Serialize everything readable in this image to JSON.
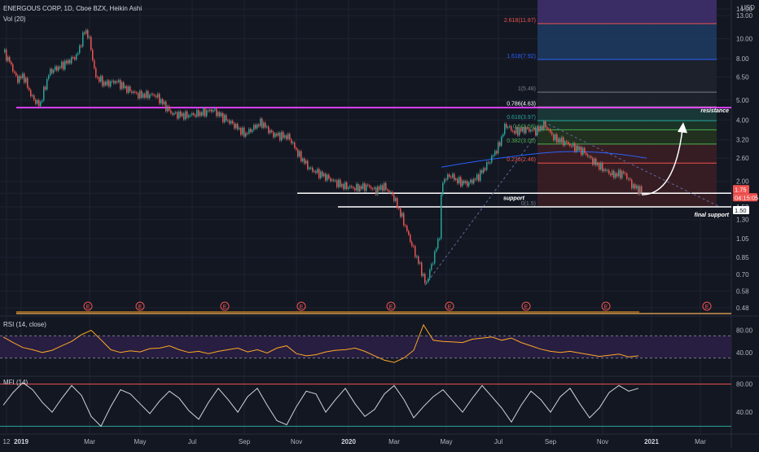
{
  "header": {
    "symbol_line": "ENERGOUS CORP, 1D, Cboe BZX, Heikin Ashi",
    "volume_label": "Vol (20)",
    "rsi_label": "RSI (14, close)",
    "mfi_label": "MFI (14)"
  },
  "chart_data": [
    {
      "type": "candlestick",
      "title": "ENERGOUS CORP, 1D, Cboe BZX, Heikin Ashi",
      "scale": "log",
      "currency": "USD",
      "ylim": [
        0.45,
        15.5
      ],
      "y_ticks": [
        {
          "value": 14.0,
          "label": "14.00"
        },
        {
          "value": 13.0,
          "label": "13.00"
        },
        {
          "value": 10.0,
          "label": "10.00"
        },
        {
          "value": 8.0,
          "label": "8.00"
        },
        {
          "value": 6.5,
          "label": "6.50"
        },
        {
          "value": 5.0,
          "label": "5.00"
        },
        {
          "value": 4.0,
          "label": "4.00"
        },
        {
          "value": 3.2,
          "label": "3.20"
        },
        {
          "value": 2.6,
          "label": "2.60"
        },
        {
          "value": 2.0,
          "label": "2.00"
        },
        {
          "value": 1.75,
          "label": "1.75"
        },
        {
          "value": 1.5,
          "label": "1.50"
        },
        {
          "value": 1.3,
          "label": "1.30"
        },
        {
          "value": 1.05,
          "label": "1.05"
        },
        {
          "value": 0.85,
          "label": "0.85"
        },
        {
          "value": 0.7,
          "label": "0.70"
        },
        {
          "value": 0.58,
          "label": "0.58"
        },
        {
          "value": 0.48,
          "label": "0.48"
        }
      ],
      "x_ticks": [
        "12",
        "2019",
        "Mar",
        "May",
        "Jul",
        "Sep",
        "Nov",
        "2020",
        "Mar",
        "May",
        "Jul",
        "Sep",
        "Nov",
        "2021",
        "Mar"
      ],
      "x_tick_bold": [
        "2019",
        "2020",
        "2021"
      ],
      "price_path": [
        {
          "t": 0,
          "v": 8.6
        },
        {
          "t": 8,
          "v": 7.6
        },
        {
          "t": 16,
          "v": 6.3
        },
        {
          "t": 24,
          "v": 6.6
        },
        {
          "t": 34,
          "v": 5.2
        },
        {
          "t": 44,
          "v": 4.7
        },
        {
          "t": 56,
          "v": 6.9
        },
        {
          "t": 66,
          "v": 7.2
        },
        {
          "t": 76,
          "v": 7.6
        },
        {
          "t": 90,
          "v": 8.3
        },
        {
          "t": 100,
          "v": 11.2
        },
        {
          "t": 106,
          "v": 9.6
        },
        {
          "t": 112,
          "v": 6.6
        },
        {
          "t": 124,
          "v": 6.0
        },
        {
          "t": 138,
          "v": 6.2
        },
        {
          "t": 150,
          "v": 5.7
        },
        {
          "t": 166,
          "v": 5.3
        },
        {
          "t": 186,
          "v": 5.3
        },
        {
          "t": 196,
          "v": 4.8
        },
        {
          "t": 206,
          "v": 4.3
        },
        {
          "t": 224,
          "v": 4.2
        },
        {
          "t": 246,
          "v": 4.35
        },
        {
          "t": 256,
          "v": 4.5
        },
        {
          "t": 266,
          "v": 4.2
        },
        {
          "t": 282,
          "v": 3.8
        },
        {
          "t": 296,
          "v": 3.4
        },
        {
          "t": 316,
          "v": 3.9
        },
        {
          "t": 330,
          "v": 3.4
        },
        {
          "t": 350,
          "v": 3.3
        },
        {
          "t": 362,
          "v": 2.7
        },
        {
          "t": 376,
          "v": 2.3
        },
        {
          "t": 396,
          "v": 2.1
        },
        {
          "t": 416,
          "v": 1.9
        },
        {
          "t": 432,
          "v": 1.85
        },
        {
          "t": 448,
          "v": 1.9
        },
        {
          "t": 456,
          "v": 1.8
        },
        {
          "t": 466,
          "v": 1.9
        },
        {
          "t": 478,
          "v": 1.7
        },
        {
          "t": 490,
          "v": 1.3
        },
        {
          "t": 502,
          "v": 0.95
        },
        {
          "t": 512,
          "v": 0.75
        },
        {
          "t": 518,
          "v": 0.62
        },
        {
          "t": 528,
          "v": 0.85
        },
        {
          "t": 535,
          "v": 1.1
        },
        {
          "t": 538,
          "v": 2.0
        },
        {
          "t": 548,
          "v": 2.15
        },
        {
          "t": 558,
          "v": 2.0
        },
        {
          "t": 570,
          "v": 1.95
        },
        {
          "t": 582,
          "v": 2.1
        },
        {
          "t": 596,
          "v": 2.5
        },
        {
          "t": 608,
          "v": 3.0
        },
        {
          "t": 616,
          "v": 3.8
        },
        {
          "t": 626,
          "v": 3.5
        },
        {
          "t": 640,
          "v": 3.6
        },
        {
          "t": 654,
          "v": 3.55
        },
        {
          "t": 664,
          "v": 3.8
        },
        {
          "t": 676,
          "v": 3.25
        },
        {
          "t": 690,
          "v": 3.1
        },
        {
          "t": 700,
          "v": 2.95
        },
        {
          "t": 712,
          "v": 2.8
        },
        {
          "t": 724,
          "v": 2.5
        },
        {
          "t": 736,
          "v": 2.3
        },
        {
          "t": 748,
          "v": 2.15
        },
        {
          "t": 762,
          "v": 2.2
        },
        {
          "t": 772,
          "v": 1.9
        },
        {
          "t": 784,
          "v": 1.78
        }
      ],
      "price_axis_badges": [
        {
          "label": "1.75",
          "color": "#ef5350"
        },
        {
          "label": "04:15:05",
          "color": "#ef5350"
        },
        {
          "label": "1.50",
          "color": "#ffffff"
        }
      ],
      "fibonacci": [
        {
          "label": "2.618(11.87)",
          "value": 11.87,
          "color": "#ef5350",
          "zone": "#4a1f26"
        },
        {
          "label": "1.618(7.92)",
          "value": 7.92,
          "color": "#2962ff",
          "zone": "#1e3a5f"
        },
        {
          "label": "1(5.48)",
          "value": 5.48,
          "color": "#787b86",
          "zone": "#1e222d"
        },
        {
          "label": "0.786(4.63)",
          "value": 4.63,
          "color": "#ffffff",
          "zone": "#1e222d"
        },
        {
          "label": "0.618(3.97)",
          "value": 3.97,
          "color": "#26a69a",
          "zone": "#1b3b3a"
        },
        {
          "label": "0.5(3.58)",
          "value": 3.58,
          "color": "#4caf50",
          "zone": "#1d3628"
        },
        {
          "label": "0.382(3.05)",
          "value": 3.05,
          "color": "#4caf50",
          "zone": "#24331f"
        },
        {
          "label": "0.236(2.46)",
          "value": 2.46,
          "color": "#ef5350",
          "zone": "#3b1e24"
        },
        {
          "label": "0(1.5)",
          "value": 1.5,
          "color": "#787b86",
          "zone": "#3b1e24"
        }
      ],
      "annotations": [
        {
          "text": "resistance",
          "value": 4.2
        },
        {
          "text": "support",
          "value": 1.75
        },
        {
          "text": "final support",
          "value": 1.42
        }
      ],
      "resistance_line": 4.6,
      "support_line": 1.75,
      "final_support_line": 1.5,
      "earnings_marker": "E",
      "earnings_count": 9
    },
    {
      "type": "line",
      "title": "RSI (14, close)",
      "ylim": [
        0,
        100
      ],
      "y_ticks": [
        {
          "value": 80,
          "label": "80.00"
        },
        {
          "value": 40,
          "label": "40.00"
        }
      ],
      "bands": [
        70,
        30
      ],
      "series": [
        {
          "values": [
            68,
            58,
            49,
            45,
            40,
            44,
            52,
            60,
            72,
            80,
            63,
            45,
            40,
            43,
            41,
            47,
            48,
            52,
            45,
            40,
            42,
            38,
            42,
            45,
            48,
            41,
            45,
            39,
            48,
            52,
            38,
            34,
            36,
            41,
            44,
            45,
            48,
            42,
            34,
            26,
            22,
            30,
            44,
            90,
            62,
            60,
            59,
            58,
            64,
            66,
            68,
            62,
            66,
            58,
            52,
            46,
            42,
            40,
            42,
            39,
            36,
            33,
            35,
            37,
            32,
            34
          ]
        }
      ]
    },
    {
      "type": "line",
      "title": "MFI (14)",
      "ylim": [
        10,
        90
      ],
      "y_ticks": [
        {
          "value": 80,
          "label": "80.00"
        },
        {
          "value": 40,
          "label": "40.00"
        }
      ],
      "bands": [
        80,
        20
      ],
      "series": [
        {
          "values": [
            50,
            68,
            82,
            72,
            54,
            40,
            60,
            78,
            64,
            34,
            20,
            48,
            72,
            66,
            52,
            38,
            56,
            70,
            60,
            42,
            30,
            54,
            74,
            58,
            40,
            62,
            74,
            50,
            28,
            22,
            48,
            70,
            66,
            40,
            58,
            74,
            52,
            34,
            44,
            66,
            78,
            58,
            32,
            48,
            62,
            72,
            56,
            40,
            60,
            78,
            62,
            46,
            26,
            50,
            70,
            58,
            40,
            62,
            74,
            52,
            32,
            46,
            68,
            78,
            70,
            74
          ]
        }
      ]
    }
  ]
}
